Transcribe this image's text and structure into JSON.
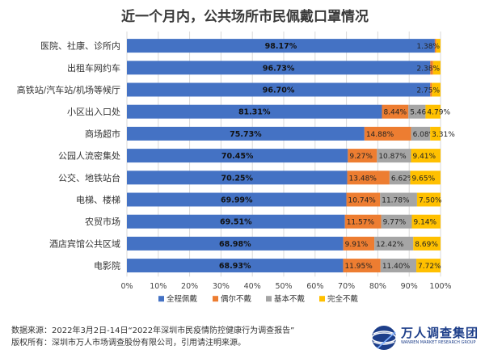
{
  "chart_data": {
    "type": "bar",
    "orientation": "horizontal",
    "stacked": true,
    "title": "近一个月内，公共场所市民佩戴口罩情况",
    "categories": [
      "医院、社康、诊所内",
      "出租车网约车",
      "高铁站/汽车站/机场等候厅",
      "小区出入口处",
      "商场超市",
      "公园人流密集处",
      "公交、地铁站台",
      "电梯、楼梯",
      "农贸市场",
      "酒店宾馆公共区域",
      "电影院"
    ],
    "series": [
      {
        "name": "全程佩戴",
        "color": "#4472C4",
        "values": [
          98.17,
          96.73,
          96.7,
          81.31,
          75.73,
          70.45,
          70.25,
          69.99,
          69.51,
          68.98,
          68.93
        ]
      },
      {
        "name": "偶尔不戴",
        "color": "#ED7D31",
        "values": [
          0.45,
          0.89,
          0.55,
          8.44,
          14.88,
          9.27,
          13.48,
          10.74,
          11.57,
          9.91,
          11.95
        ]
      },
      {
        "name": "基本不戴",
        "color": "#A5A5A5",
        "values": [
          0,
          0,
          0,
          5.46,
          6.08,
          10.87,
          6.62,
          11.78,
          9.77,
          12.42,
          11.4
        ]
      },
      {
        "name": "完全不戴",
        "color": "#FFC000",
        "values": [
          1.38,
          2.38,
          2.75,
          4.79,
          3.31,
          9.41,
          9.65,
          7.5,
          9.14,
          8.69,
          7.72
        ]
      }
    ],
    "labels": [
      [
        "98.17%",
        "",
        "",
        "1.38%"
      ],
      [
        "96.73%",
        "",
        "",
        "2.38%"
      ],
      [
        "96.70%",
        "",
        "",
        "2.75%"
      ],
      [
        "81.31%",
        "8.44%",
        "5.46%",
        "4.79%"
      ],
      [
        "75.73%",
        "14.88%",
        "6.08%",
        "3.31%"
      ],
      [
        "70.45%",
        "9.27%",
        "10.87%",
        "9.41%"
      ],
      [
        "70.25%",
        "13.48%",
        "6.62%",
        "9.65%"
      ],
      [
        "69.99%",
        "10.74%",
        "11.78%",
        "7.50%"
      ],
      [
        "69.51%",
        "11.57%",
        "9.77%",
        "9.14%"
      ],
      [
        "68.98%",
        "9.91%",
        "12.42%",
        "8.69%"
      ],
      [
        "68.93%",
        "11.95%",
        "11.40%",
        "7.72%"
      ]
    ],
    "xticks": [
      "0%",
      "10%",
      "20%",
      "30%",
      "40%",
      "50%",
      "60%",
      "70%",
      "80%",
      "90%",
      "100%"
    ],
    "xlim": [
      0,
      100
    ],
    "grid": true,
    "legend_position": "bottom"
  },
  "footer": {
    "source": "数据来源：2022年3月2日-14日“2022年深圳市民疫情防控健康行为调查报告”",
    "copyright": "版权所有：深圳市万人市场调查股份有限公司，引用请注明来源。"
  },
  "logo": {
    "name": "万人调查集团",
    "tagline": "WANREN MARKET RESEARCH GROUP",
    "icon": "globe-logo-icon"
  }
}
